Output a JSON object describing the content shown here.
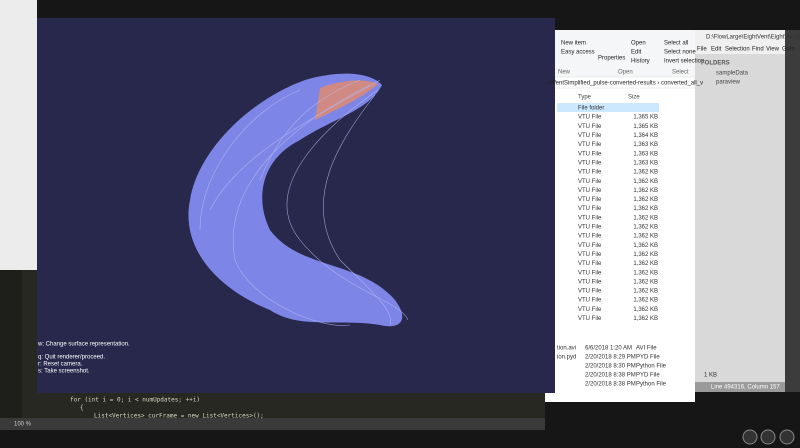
{
  "render_window": {
    "overlay_lines": [
      "w: Change surface representation.",
      "q: Quit renderer/proceed.",
      "r: Reset camera.",
      "s: Take screenshot."
    ]
  },
  "explorer": {
    "ribbon": [
      "New item",
      "Easy access",
      "Properties",
      "Open",
      "Edit",
      "History",
      "Select all",
      "Select none",
      "Invert selection"
    ],
    "groups": [
      "New",
      "Open",
      "Select"
    ],
    "breadcrumb": "ntVentSimplified_pulse-converted-results  ›  converted_all_v",
    "columns": [
      "Type",
      "Size"
    ],
    "rows": [
      {
        "type": "File folder"
      },
      {
        "type": "VTU File",
        "size": "1,365 KB"
      },
      {
        "type": "VTU File",
        "size": "1,365 KB"
      },
      {
        "type": "VTU File",
        "size": "1,364 KB"
      },
      {
        "type": "VTU File",
        "size": "1,363 KB"
      },
      {
        "type": "VTU File",
        "size": "1,363 KB"
      },
      {
        "type": "VTU File",
        "size": "1,363 KB"
      },
      {
        "type": "VTU File",
        "size": "1,362 KB"
      },
      {
        "type": "VTU File",
        "size": "1,362 KB"
      },
      {
        "type": "VTU File",
        "size": "1,362 KB"
      },
      {
        "type": "VTU File",
        "size": "1,362 KB"
      },
      {
        "type": "VTU File",
        "size": "1,362 KB"
      },
      {
        "type": "VTU File",
        "size": "1,362 KB"
      },
      {
        "type": "VTU File",
        "size": "1,362 KB"
      },
      {
        "type": "VTU File",
        "size": "1,362 KB"
      },
      {
        "type": "VTU File",
        "size": "1,362 KB"
      },
      {
        "type": "VTU File",
        "size": "1,362 KB"
      },
      {
        "type": "VTU File",
        "size": "1,362 KB"
      },
      {
        "type": "VTU File",
        "size": "1,362 KB"
      },
      {
        "type": "VTU File",
        "size": "1,362 KB"
      },
      {
        "type": "VTU File",
        "size": "1,362 KB"
      },
      {
        "type": "VTU File",
        "size": "1,362 KB"
      },
      {
        "type": "VTU File",
        "size": "1,362 KB"
      },
      {
        "type": "VTU File",
        "size": "1,362 KB"
      }
    ],
    "lower_rows": [
      {
        "name": "tion.avi",
        "date": "6/6/2018 1:20 AM",
        "type": "AVI File"
      },
      {
        "name": "ion.pyd",
        "date": "2/20/2018 8:29 PM",
        "type": "PYD File"
      },
      {
        "date": "2/20/2018 8:30 PM",
        "type": "Python File"
      },
      {
        "date": "2/20/2018 8:38 PM",
        "type": "PYD File",
        "size": "1 KB"
      },
      {
        "date": "2/20/2018 8:38 PM",
        "type": "Python File"
      }
    ]
  },
  "sidebar": {
    "title": "D:\\FlowLarge\\EightVent\\EightVentSimp",
    "menu": [
      "File",
      "Edit",
      "Selection",
      "Find",
      "View",
      "Goto"
    ],
    "folders_label": "FOLDERS",
    "folders": [
      "sampleData",
      "paraview"
    ],
    "status": "Line 494316, Column 157"
  },
  "editor": {
    "lines": [
      "for (int i = 0; i < numUpdates; ++i)",
      "{",
      "List<Vertices> curFrame = new List<Vertices>();"
    ],
    "zoom": "100 %"
  }
}
